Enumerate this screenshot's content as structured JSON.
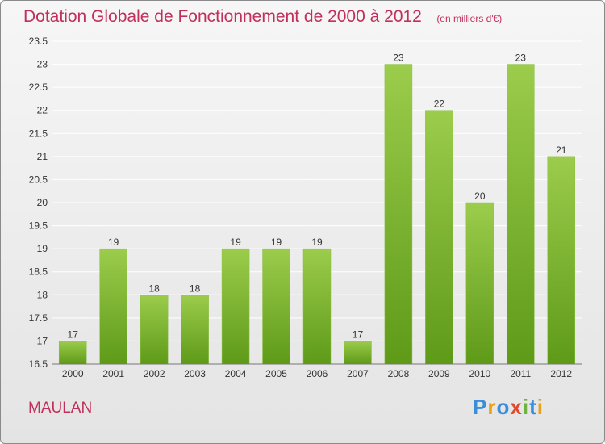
{
  "place": "MAULAN",
  "brand": {
    "text": "Proxiti",
    "letters": [
      {
        "ch": "P",
        "color": "#3a8fd8"
      },
      {
        "ch": "r",
        "color": "#e7a21a"
      },
      {
        "ch": "o",
        "color": "#3a8fd8"
      },
      {
        "ch": "x",
        "color": "#e04a2a"
      },
      {
        "ch": "i",
        "color": "#6db33f"
      },
      {
        "ch": "t",
        "color": "#3a8fd8"
      },
      {
        "ch": "i",
        "color": "#e7a21a"
      }
    ]
  },
  "colors": {
    "title": "#c0305a",
    "bar_top": "#9ccc4c",
    "bar_bottom": "#5e9a18",
    "grid": "#ffffff"
  },
  "chart_data": {
    "type": "bar",
    "title": "Dotation Globale de Fonctionnement de 2000 à 2012",
    "subtitle": "(en milliers d'€)",
    "xlabel": "",
    "ylabel": "",
    "categories": [
      "2000",
      "2001",
      "2002",
      "2003",
      "2004",
      "2005",
      "2006",
      "2007",
      "2008",
      "2009",
      "2010",
      "2011",
      "2012"
    ],
    "values": [
      17,
      19,
      18,
      18,
      19,
      19,
      19,
      17,
      23,
      22,
      20,
      23,
      21
    ],
    "ylim": [
      16.5,
      23.5
    ],
    "yticks": [
      "16.5",
      "17",
      "17.5",
      "18",
      "18.5",
      "19",
      "19.5",
      "20",
      "20.5",
      "21",
      "21.5",
      "22",
      "22.5",
      "23",
      "23.5"
    ],
    "grid": true,
    "data_labels": true
  }
}
